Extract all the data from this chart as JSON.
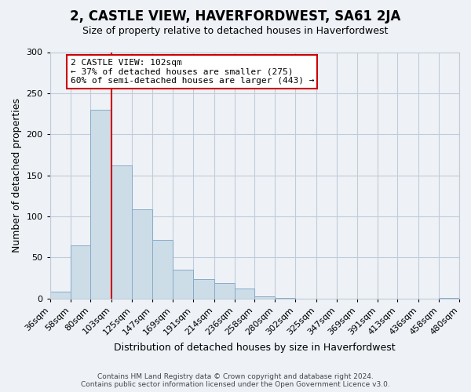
{
  "title": "2, CASTLE VIEW, HAVERFORDWEST, SA61 2JA",
  "subtitle": "Size of property relative to detached houses in Haverfordwest",
  "xlabel": "Distribution of detached houses by size in Haverfordwest",
  "ylabel": "Number of detached properties",
  "footer_lines": [
    "Contains HM Land Registry data © Crown copyright and database right 2024.",
    "Contains public sector information licensed under the Open Government Licence v3.0."
  ],
  "bar_edges": [
    36,
    58,
    80,
    103,
    125,
    147,
    169,
    191,
    214,
    236,
    258,
    280,
    302,
    325,
    347,
    369,
    391,
    413,
    436,
    458,
    480
  ],
  "bar_heights": [
    8,
    65,
    230,
    162,
    109,
    71,
    35,
    24,
    19,
    12,
    3,
    1,
    0,
    0,
    0,
    0,
    0,
    0,
    0,
    1
  ],
  "bar_color": "#ccdde8",
  "bar_edgecolor": "#88aac8",
  "ylim": [
    0,
    300
  ],
  "yticks": [
    0,
    50,
    100,
    150,
    200,
    250,
    300
  ],
  "xtick_labels": [
    "36sqm",
    "58sqm",
    "80sqm",
    "103sqm",
    "125sqm",
    "147sqm",
    "169sqm",
    "191sqm",
    "214sqm",
    "236sqm",
    "258sqm",
    "280sqm",
    "302sqm",
    "325sqm",
    "347sqm",
    "369sqm",
    "391sqm",
    "413sqm",
    "436sqm",
    "458sqm",
    "480sqm"
  ],
  "property_line_x": 103,
  "annotation_title": "2 CASTLE VIEW: 102sqm",
  "annotation_line1": "← 37% of detached houses are smaller (275)",
  "annotation_line2": "60% of semi-detached houses are larger (443) →",
  "annotation_box_color": "#ffffff",
  "annotation_box_edgecolor": "#cc0000",
  "property_line_color": "#cc0000",
  "grid_color": "#c0ccd8",
  "background_color": "#eef2f7",
  "title_fontsize": 12,
  "subtitle_fontsize": 9,
  "axis_label_fontsize": 9,
  "tick_fontsize": 8,
  "footer_fontsize": 6.5
}
